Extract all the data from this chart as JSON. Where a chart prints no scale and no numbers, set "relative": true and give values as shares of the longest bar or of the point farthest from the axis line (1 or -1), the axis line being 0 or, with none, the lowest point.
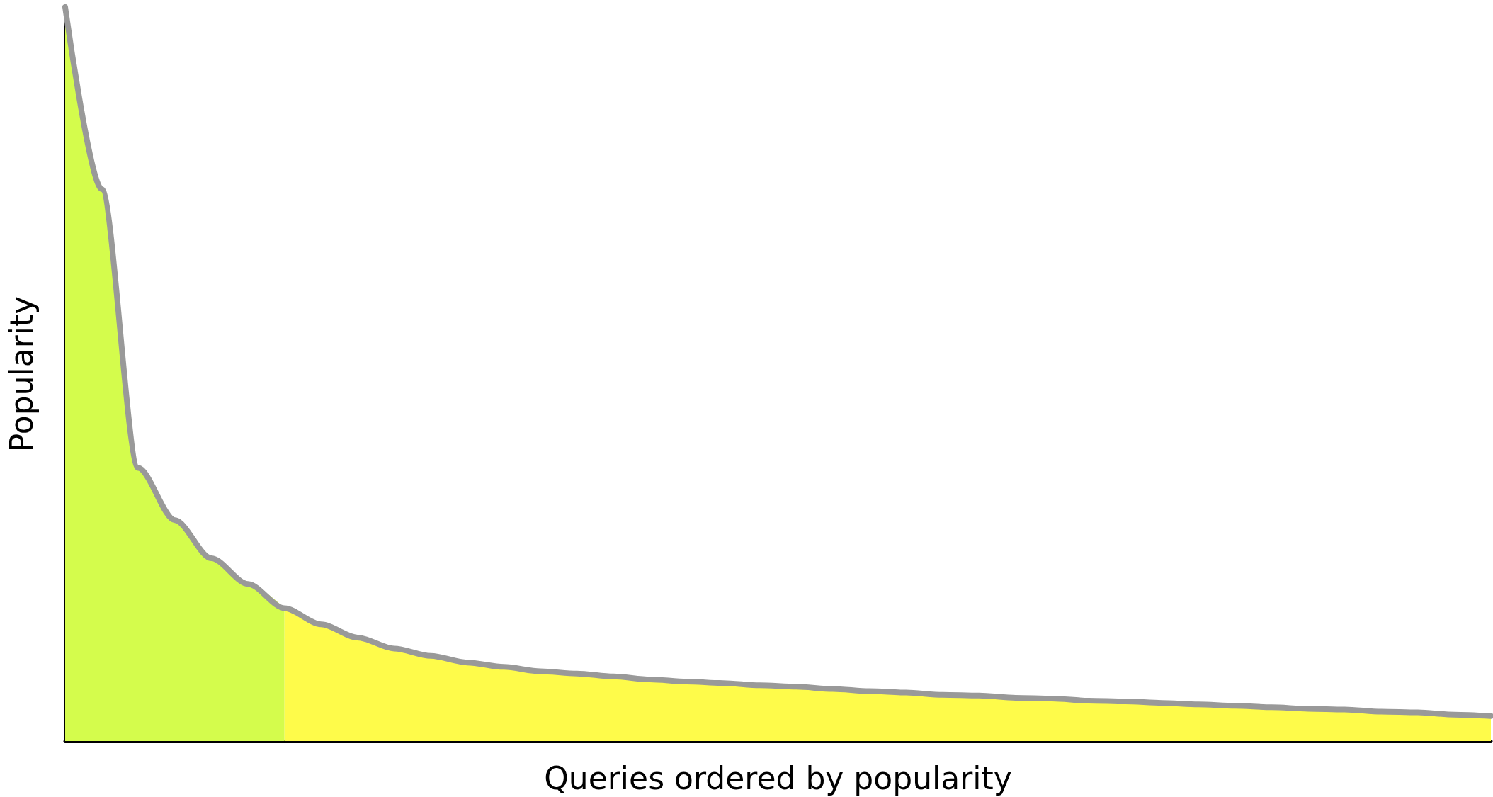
{
  "chart_data": {
    "type": "area",
    "relative": true,
    "xlabel": "Queries ordered by popularity",
    "ylabel": "Popularity",
    "grid": false,
    "categories": [
      null,
      null,
      null,
      null,
      null,
      null,
      null,
      null,
      null,
      null,
      null,
      null,
      null,
      null,
      null,
      null,
      null,
      null,
      null,
      null,
      null,
      null,
      null,
      null,
      null,
      null,
      null,
      null,
      null,
      null,
      null,
      null,
      null,
      null,
      null,
      null,
      null,
      null,
      null,
      null
    ],
    "series": [
      {
        "color": "#d4fc4c",
        "values": [
          1.0,
          0.752,
          0.372,
          0.301,
          0.249,
          0.214,
          0.181,
          null,
          null,
          null,
          null,
          null,
          null,
          null,
          null,
          null,
          null,
          null,
          null,
          null,
          null,
          null,
          null,
          null,
          null,
          null,
          null,
          null,
          null,
          null,
          null,
          null,
          null,
          null,
          null,
          null,
          null,
          null,
          null,
          null
        ]
      },
      {
        "color": "#fefb4a",
        "values": [
          null,
          null,
          null,
          null,
          null,
          null,
          0.181,
          0.159,
          0.141,
          0.126,
          0.116,
          0.107,
          0.101,
          0.095,
          0.092,
          0.088,
          0.084,
          0.081,
          0.079,
          0.076,
          0.074,
          0.071,
          0.068,
          0.066,
          0.063,
          0.062,
          0.059,
          0.058,
          0.055,
          0.054,
          0.052,
          0.05,
          0.048,
          0.046,
          0.044,
          0.043,
          0.04,
          0.039,
          0.036,
          0.034
        ]
      },
      {
        "type": "line",
        "color": "#999999",
        "line_style": "solid",
        "values": [
          1.0,
          0.752,
          0.372,
          0.301,
          0.249,
          0.214,
          0.181,
          0.159,
          0.141,
          0.126,
          0.116,
          0.107,
          0.101,
          0.095,
          0.092,
          0.088,
          0.084,
          0.081,
          0.079,
          0.076,
          0.074,
          0.071,
          0.068,
          0.066,
          0.063,
          0.062,
          0.059,
          0.058,
          0.055,
          0.054,
          0.052,
          0.05,
          0.048,
          0.046,
          0.044,
          0.043,
          0.04,
          0.039,
          0.036,
          0.034
        ]
      }
    ]
  }
}
